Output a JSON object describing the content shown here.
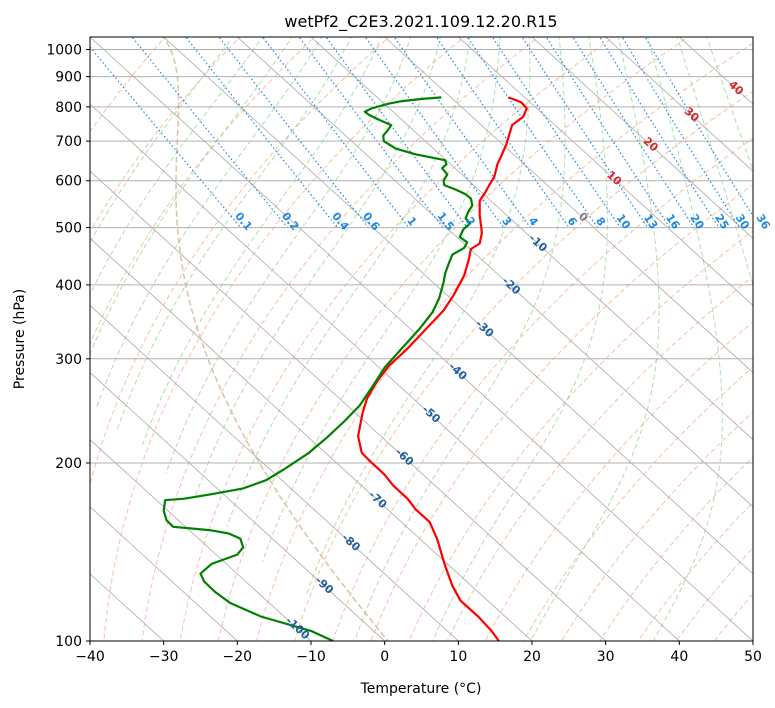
{
  "chart_data": {
    "type": "line",
    "title": "wetPf2_C2E3.2021.109.12.20.R15",
    "xlabel": "Temperature (°C)",
    "ylabel": "Pressure (hPa)",
    "xlim": [
      -40,
      50
    ],
    "ylim": [
      1050,
      100
    ],
    "y_scale": "log",
    "x_ticks": [
      "−40",
      "−30",
      "−20",
      "−10",
      "0",
      "10",
      "20",
      "30",
      "40",
      "50"
    ],
    "y_ticks": [
      {
        "p": 100,
        "label": "100"
      },
      {
        "p": 200,
        "label": "200"
      },
      {
        "p": 300,
        "label": "300"
      },
      {
        "p": 400,
        "label": "400"
      },
      {
        "p": 500,
        "label": "500"
      },
      {
        "p": 600,
        "label": "600"
      },
      {
        "p": 700,
        "label": "700"
      },
      {
        "p": 800,
        "label": "800"
      },
      {
        "p": 900,
        "label": "900"
      },
      {
        "p": 1000,
        "label": "1000"
      }
    ],
    "grid": true,
    "colors": {
      "temperature": "#ff0000",
      "dewpoint": "#008000",
      "isotherm": "#aaaaaa",
      "dry_adiabat": "#f4a582",
      "moist_adiabat": "#8fce8f",
      "mixing_ratio": "#1e88e5",
      "freezing_level": "#d0b896",
      "isotherm_label": "#1f5f9f",
      "positive_label": "#d62728",
      "zero_label": "#808080"
    },
    "series": [
      {
        "key": "temperature",
        "points": [
          [
            16.8,
            830
          ],
          [
            18.5,
            815
          ],
          [
            19.3,
            795
          ],
          [
            18.8,
            770
          ],
          [
            17.3,
            745
          ],
          [
            16.8,
            710
          ],
          [
            16.5,
            690
          ],
          [
            15.8,
            660
          ],
          [
            15.3,
            640
          ],
          [
            14.9,
            610
          ],
          [
            14.2,
            590
          ],
          [
            13.6,
            572
          ],
          [
            12.9,
            555
          ],
          [
            12.9,
            525
          ],
          [
            13.2,
            490
          ],
          [
            12.9,
            470
          ],
          [
            11.7,
            460
          ],
          [
            11.4,
            440
          ],
          [
            10.8,
            415
          ],
          [
            9.4,
            385
          ],
          [
            8.0,
            362
          ],
          [
            5.7,
            338
          ],
          [
            3.2,
            313
          ],
          [
            0.6,
            292
          ],
          [
            -1.0,
            275
          ],
          [
            -2.4,
            257
          ],
          [
            -3.0,
            243
          ],
          [
            -3.6,
            222
          ],
          [
            -3.1,
            208
          ],
          [
            -2.1,
            202
          ],
          [
            0.0,
            191
          ],
          [
            1.2,
            183
          ],
          [
            3.1,
            174
          ],
          [
            4.2,
            167
          ],
          [
            6.1,
            159
          ],
          [
            7.1,
            149
          ],
          [
            8.2,
            134
          ],
          [
            9.2,
            124
          ],
          [
            10.3,
            117
          ],
          [
            12.7,
            110
          ],
          [
            14.5,
            104
          ],
          [
            15.5,
            100
          ]
        ]
      },
      {
        "key": "dewpoint",
        "points": [
          [
            7.7,
            830
          ],
          [
            5.1,
            825
          ],
          [
            2.4,
            818
          ],
          [
            0.5,
            810
          ],
          [
            -1.8,
            795
          ],
          [
            -2.7,
            785
          ],
          [
            -2.1,
            775
          ],
          [
            -0.7,
            760
          ],
          [
            0.9,
            745
          ],
          [
            0.4,
            730
          ],
          [
            -0.2,
            715
          ],
          [
            -0.1,
            700
          ],
          [
            1.5,
            680
          ],
          [
            4.2,
            665
          ],
          [
            8.2,
            650
          ],
          [
            8.4,
            640
          ],
          [
            7.8,
            630
          ],
          [
            8.5,
            615
          ],
          [
            8.0,
            600
          ],
          [
            8.1,
            590
          ],
          [
            9.6,
            580
          ],
          [
            10.9,
            570
          ],
          [
            11.7,
            560
          ],
          [
            11.9,
            545
          ],
          [
            11.3,
            530
          ],
          [
            11.0,
            518
          ],
          [
            11.6,
            508
          ],
          [
            10.7,
            497
          ],
          [
            10.2,
            482
          ],
          [
            11.2,
            472
          ],
          [
            10.8,
            462
          ],
          [
            9.2,
            450
          ],
          [
            8.7,
            435
          ],
          [
            8.2,
            418
          ],
          [
            8.0,
            404
          ],
          [
            7.4,
            380
          ],
          [
            6.5,
            360
          ],
          [
            4.8,
            338
          ],
          [
            2.4,
            313
          ],
          [
            0.0,
            290
          ],
          [
            -1.6,
            270
          ],
          [
            -3.4,
            250
          ],
          [
            -5.5,
            235
          ],
          [
            -7.8,
            221
          ],
          [
            -10.3,
            208
          ],
          [
            -13.7,
            195
          ],
          [
            -16.1,
            187
          ],
          [
            -19.3,
            181
          ],
          [
            -23.6,
            177
          ],
          [
            -27.2,
            174
          ],
          [
            -29.8,
            173
          ],
          [
            -30.0,
            166
          ],
          [
            -29.6,
            160
          ],
          [
            -28.7,
            156
          ],
          [
            -23.8,
            154
          ],
          [
            -21.2,
            152
          ],
          [
            -19.6,
            149
          ],
          [
            -19.2,
            144
          ],
          [
            -20.0,
            140
          ],
          [
            -23.5,
            135
          ],
          [
            -25.0,
            130
          ],
          [
            -24.5,
            126
          ],
          [
            -23.0,
            121
          ],
          [
            -21.0,
            116
          ],
          [
            -16.8,
            110
          ],
          [
            -10.0,
            104
          ],
          [
            -7.0,
            100
          ]
        ]
      }
    ],
    "isotherm_labels": [
      {
        "t": -100,
        "text": "-100"
      },
      {
        "t": -90,
        "text": "-90"
      },
      {
        "t": -80,
        "text": "-80"
      },
      {
        "t": -70,
        "text": "-70"
      },
      {
        "t": -60,
        "text": "-60"
      },
      {
        "t": -50,
        "text": "-50"
      },
      {
        "t": -40,
        "text": "-40"
      },
      {
        "t": -30,
        "text": "-30"
      },
      {
        "t": -20,
        "text": "-20"
      },
      {
        "t": -10,
        "text": "-10"
      },
      {
        "t": 0,
        "text": "0"
      },
      {
        "t": 10,
        "text": "10"
      },
      {
        "t": 20,
        "text": "20"
      },
      {
        "t": 30,
        "text": "30"
      },
      {
        "t": 40,
        "text": "40"
      }
    ],
    "mixing_ratio_lines": [
      {
        "w": 0.1,
        "text": "0.1"
      },
      {
        "w": 0.2,
        "text": "0.2"
      },
      {
        "w": 0.4,
        "text": "0.4"
      },
      {
        "w": 0.6,
        "text": "0.6"
      },
      {
        "w": 1,
        "text": "1"
      },
      {
        "w": 1.5,
        "text": "1.5"
      },
      {
        "w": 2,
        "text": "2"
      },
      {
        "w": 3,
        "text": "3"
      },
      {
        "w": 4,
        "text": "4"
      },
      {
        "w": 6,
        "text": "6"
      },
      {
        "w": 8,
        "text": "8"
      },
      {
        "w": 10,
        "text": "10"
      },
      {
        "w": 13,
        "text": "13"
      },
      {
        "w": 16,
        "text": "16"
      },
      {
        "w": 20,
        "text": "20"
      },
      {
        "w": 25,
        "text": "25"
      },
      {
        "w": 30,
        "text": "30"
      },
      {
        "w": 36,
        "text": "36"
      }
    ]
  }
}
